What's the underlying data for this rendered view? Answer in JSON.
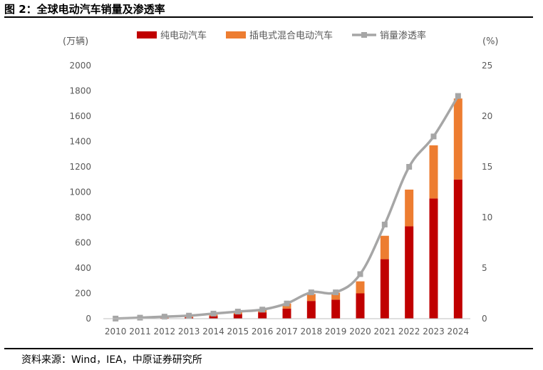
{
  "figure": {
    "title": "图 2：全球电动汽车销量及渗透率",
    "source": "资料来源：Wind，IEA，中原证券研究所"
  },
  "chart_data": {
    "type": "bar",
    "stacked": true,
    "categories": [
      "2010",
      "2011",
      "2012",
      "2013",
      "2014",
      "2015",
      "2016",
      "2017",
      "2018",
      "2019",
      "2020",
      "2021",
      "2022",
      "2023",
      "2024"
    ],
    "series": [
      {
        "name": "纯电动汽车",
        "type": "bar",
        "axis": "left",
        "color": "#c00000",
        "values": [
          0,
          2,
          5,
          10,
          20,
          36,
          50,
          80,
          140,
          150,
          200,
          470,
          730,
          950,
          1100
        ]
      },
      {
        "name": "插电式混合电动汽车",
        "type": "bar",
        "axis": "left",
        "color": "#ed7d31",
        "values": [
          0,
          1,
          3,
          6,
          12,
          18,
          25,
          40,
          55,
          55,
          95,
          185,
          290,
          420,
          640
        ]
      },
      {
        "name": "销量渗透率",
        "type": "line",
        "axis": "right",
        "color": "#a6a6a6",
        "values": [
          0.01,
          0.1,
          0.2,
          0.3,
          0.5,
          0.7,
          0.9,
          1.5,
          2.6,
          2.6,
          4.4,
          9.3,
          15.0,
          18.0,
          22.0
        ]
      }
    ],
    "y_left": {
      "label": "(万辆)",
      "ylim": [
        0,
        2000
      ],
      "ticks": [
        0,
        200,
        400,
        600,
        800,
        1000,
        1200,
        1400,
        1600,
        1800,
        2000
      ]
    },
    "y_right": {
      "label": "(%)",
      "ylim": [
        0,
        25
      ],
      "ticks": [
        0,
        5,
        10,
        15,
        20,
        25
      ]
    },
    "grid": false,
    "legend": "top"
  }
}
